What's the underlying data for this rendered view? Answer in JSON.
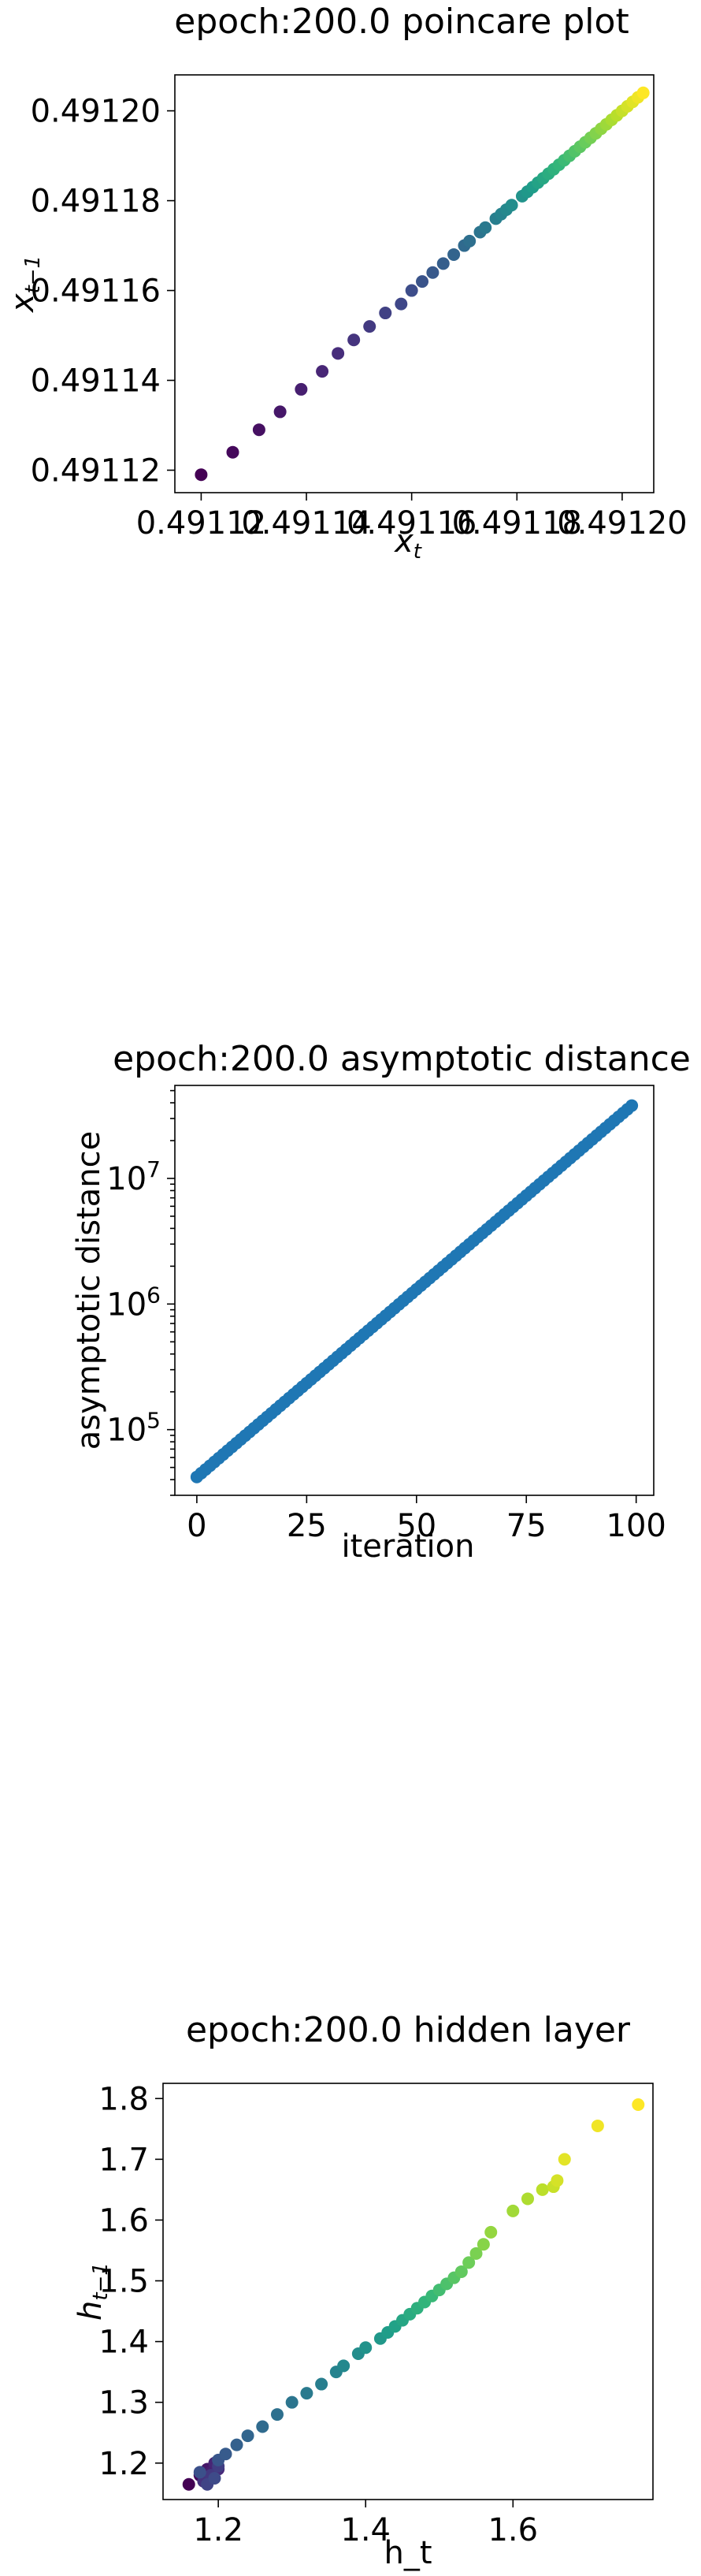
{
  "chart_data": [
    {
      "type": "scatter",
      "title": "epoch:200.0 poincare plot",
      "xlabel": "x",
      "xlabel_sub": "t",
      "ylabel": "x",
      "ylabel_sub": "t−1",
      "xlim": [
        0.491115,
        0.491206
      ],
      "ylim": [
        0.491115,
        0.491208
      ],
      "xticks": [
        0.49112,
        0.49114,
        0.49116,
        0.49118,
        0.4912
      ],
      "xtick_labels": [
        "0.49112",
        "0.49114",
        "0.49116",
        "0.49118",
        "0.49120"
      ],
      "yticks": [
        0.49112,
        0.49114,
        0.49116,
        0.49118,
        0.4912
      ],
      "ytick_labels": [
        "0.49112",
        "0.49114",
        "0.49116",
        "0.49118",
        "0.49120"
      ],
      "colormap": "viridis",
      "x": [
        0.49112,
        0.491126,
        0.491131,
        0.491135,
        0.491139,
        0.491143,
        0.491146,
        0.491149,
        0.491152,
        0.491155,
        0.491158,
        0.49116,
        0.491162,
        0.491164,
        0.491166,
        0.491168,
        0.49117,
        0.491171,
        0.491173,
        0.491174,
        0.491176,
        0.491177,
        0.491178,
        0.491179,
        0.491181,
        0.491182,
        0.491183,
        0.491184,
        0.491185,
        0.491186,
        0.491187,
        0.491188,
        0.491189,
        0.49119,
        0.491191,
        0.491192,
        0.491193,
        0.491194,
        0.491195,
        0.491196,
        0.491197,
        0.491198,
        0.491199,
        0.4912,
        0.491201,
        0.491202,
        0.491203,
        0.491204
      ],
      "y": [
        0.491119,
        0.491124,
        0.491129,
        0.491133,
        0.491138,
        0.491142,
        0.491146,
        0.491149,
        0.491152,
        0.491155,
        0.491157,
        0.49116,
        0.491162,
        0.491164,
        0.491166,
        0.491168,
        0.49117,
        0.491171,
        0.491173,
        0.491174,
        0.491176,
        0.491177,
        0.491178,
        0.491179,
        0.491181,
        0.491182,
        0.491183,
        0.491184,
        0.491185,
        0.491186,
        0.491187,
        0.491188,
        0.491189,
        0.49119,
        0.491191,
        0.491192,
        0.491193,
        0.491194,
        0.491195,
        0.491196,
        0.491197,
        0.491198,
        0.491199,
        0.4912,
        0.491201,
        0.491202,
        0.491203,
        0.491204
      ]
    },
    {
      "type": "scatter",
      "title": "epoch:200.0 asymptotic distance",
      "xlabel": "iteration",
      "ylabel": "asymptotic distance",
      "yscale": "log",
      "xlim": [
        -5,
        104
      ],
      "ylim": [
        30000,
        55000000
      ],
      "xticks": [
        0,
        25,
        50,
        75,
        100
      ],
      "xtick_labels": [
        "0",
        "25",
        "50",
        "75",
        "100"
      ],
      "yticks": [
        100000,
        1000000,
        10000000
      ],
      "ytick_labels": [
        "10^5",
        "10^6",
        "10^7"
      ],
      "color": "#1f77b4",
      "start": 42000,
      "end": 38000000,
      "count": 100
    },
    {
      "type": "scatter",
      "title": "epoch:200.0 hidden layer",
      "xlabel": "h_t",
      "ylabel": "h",
      "ylabel_sub": "t−1",
      "xlim": [
        1.125,
        1.79
      ],
      "ylim": [
        1.14,
        1.825
      ],
      "xticks": [
        1.2,
        1.4,
        1.6
      ],
      "xtick_labels": [
        "1.2",
        "1.4",
        "1.6"
      ],
      "yticks": [
        1.2,
        1.3,
        1.4,
        1.5,
        1.6,
        1.7,
        1.8
      ],
      "ytick_labels": [
        "1.2",
        "1.3",
        "1.4",
        "1.5",
        "1.6",
        "1.7",
        "1.8"
      ],
      "colormap": "viridis",
      "x": [
        1.16,
        1.175,
        1.18,
        1.185,
        1.19,
        1.195,
        1.2,
        1.18,
        1.19,
        1.2,
        1.185,
        1.195,
        1.175,
        1.2,
        1.21,
        1.225,
        1.24,
        1.26,
        1.28,
        1.3,
        1.32,
        1.34,
        1.36,
        1.37,
        1.39,
        1.4,
        1.42,
        1.43,
        1.44,
        1.45,
        1.46,
        1.47,
        1.48,
        1.49,
        1.5,
        1.51,
        1.52,
        1.53,
        1.54,
        1.55,
        1.56,
        1.57,
        1.6,
        1.62,
        1.64,
        1.655,
        1.66,
        1.67,
        1.715,
        1.77
      ],
      "y": [
        1.165,
        1.18,
        1.175,
        1.19,
        1.185,
        1.2,
        1.19,
        1.17,
        1.18,
        1.195,
        1.165,
        1.175,
        1.185,
        1.205,
        1.215,
        1.23,
        1.245,
        1.26,
        1.28,
        1.3,
        1.315,
        1.33,
        1.35,
        1.36,
        1.38,
        1.39,
        1.405,
        1.415,
        1.425,
        1.435,
        1.445,
        1.455,
        1.465,
        1.475,
        1.485,
        1.495,
        1.505,
        1.515,
        1.53,
        1.545,
        1.56,
        1.58,
        1.615,
        1.635,
        1.65,
        1.655,
        1.665,
        1.7,
        1.755,
        1.79
      ]
    }
  ]
}
